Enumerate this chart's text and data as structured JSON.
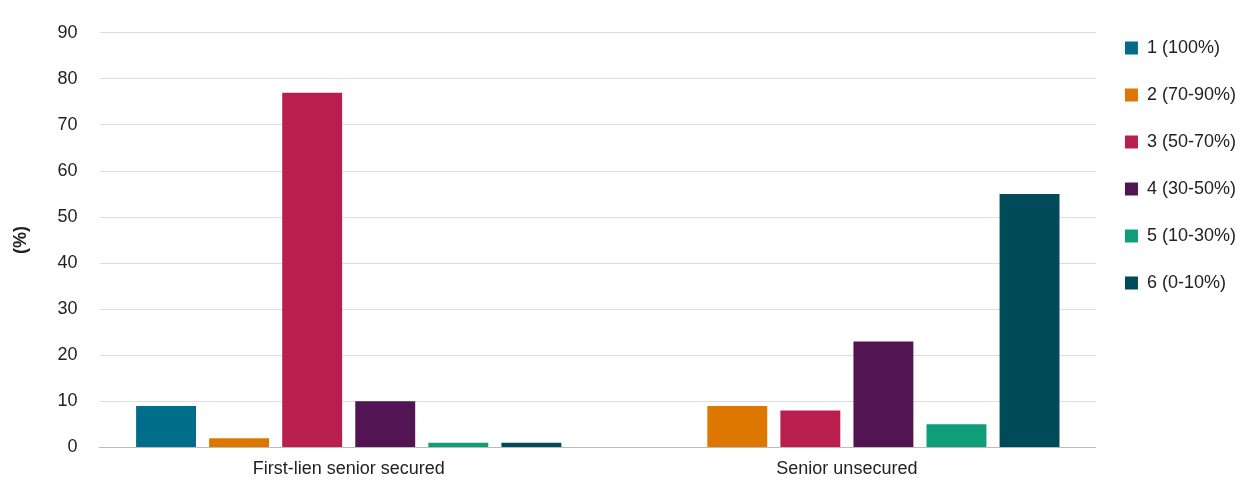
{
  "chart_data": {
    "type": "bar",
    "ylabel": "(%)",
    "categories": [
      "First-lien senior secured",
      "Senior unsecured"
    ],
    "series": [
      {
        "name": "1 (100%)",
        "color": "#006d8a",
        "values": [
          9,
          0
        ]
      },
      {
        "name": "2 (70-90%)",
        "color": "#dd7700",
        "values": [
          2,
          9
        ]
      },
      {
        "name": "3 (50-70%)",
        "color": "#b81e4e",
        "values": [
          77,
          8
        ]
      },
      {
        "name": "4 (30-50%)",
        "color": "#521452",
        "values": [
          10,
          23
        ]
      },
      {
        "name": "5 (10-30%)",
        "color": "#0f9e79",
        "values": [
          1,
          5
        ]
      },
      {
        "name": "6 (0-10%)",
        "color": "#004a5a",
        "values": [
          1,
          55
        ]
      }
    ],
    "ylim": [
      0,
      90
    ],
    "yticks": [
      0,
      10,
      20,
      30,
      40,
      50,
      60,
      70,
      80,
      90
    ],
    "grid": "y",
    "legend": "right"
  }
}
